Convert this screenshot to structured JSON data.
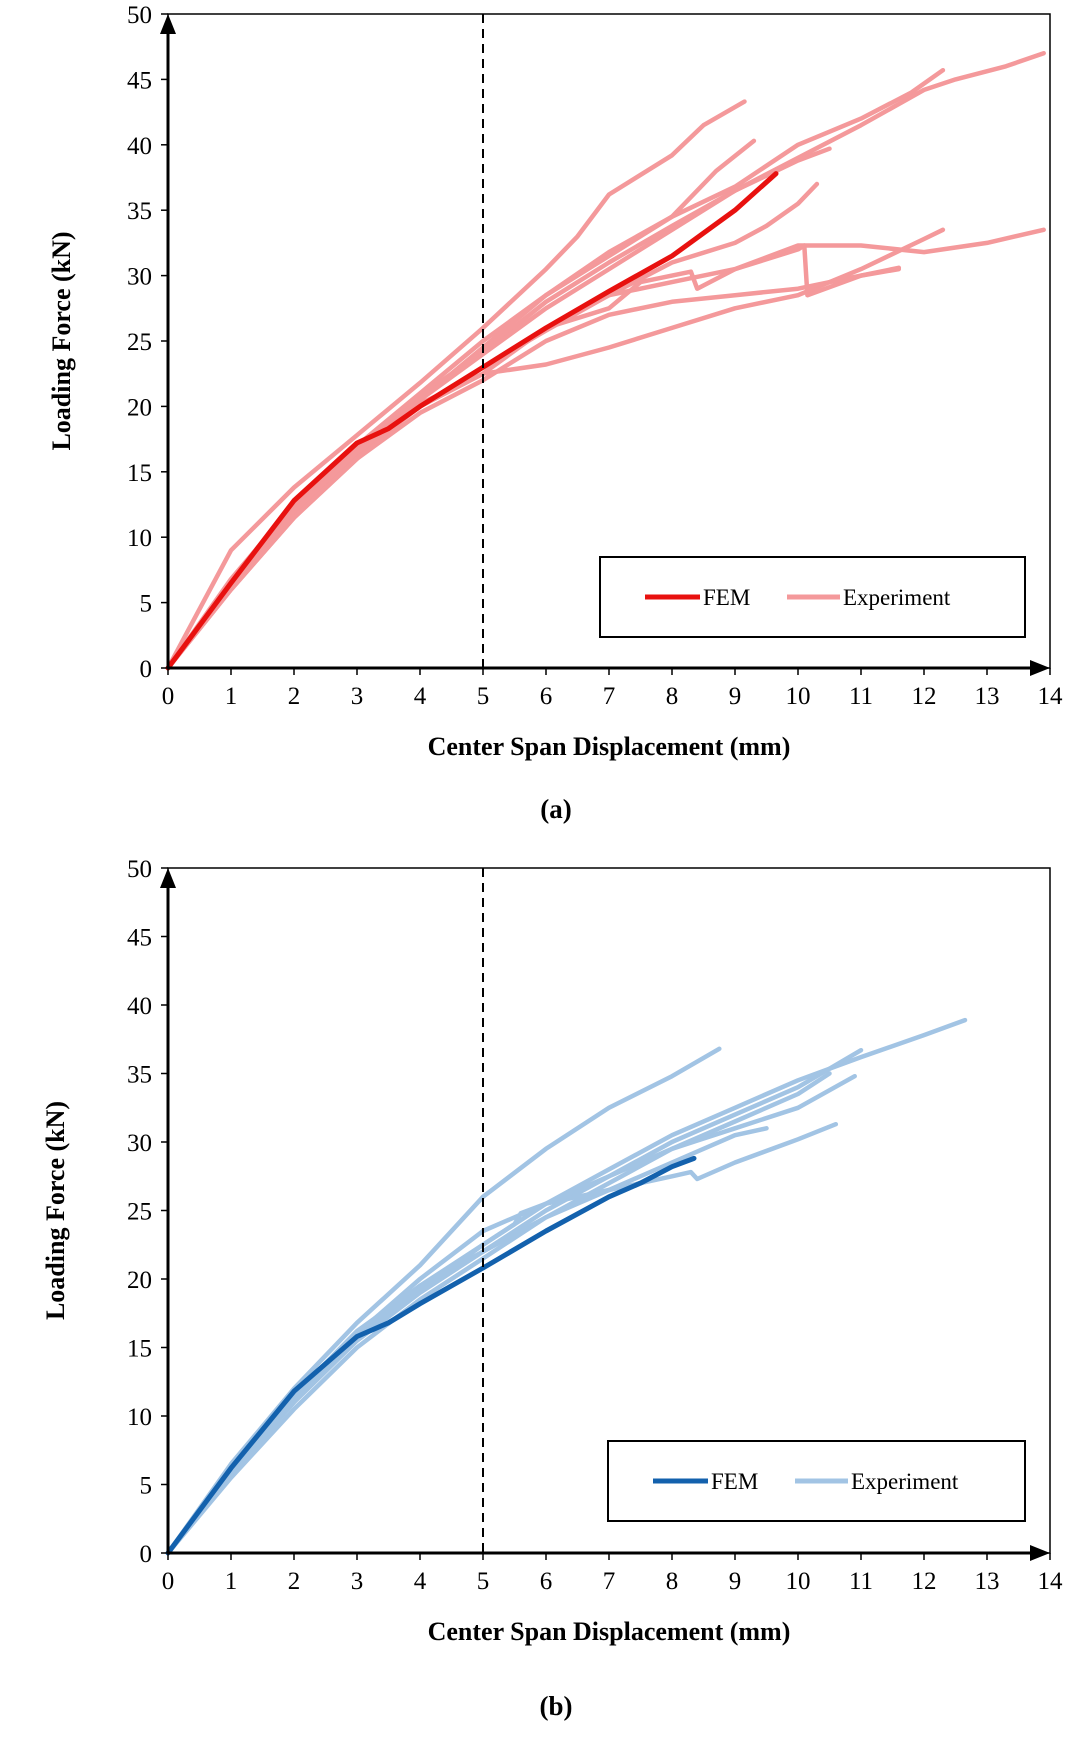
{
  "chart_data": [
    {
      "type": "line",
      "panel_label": "(a)",
      "xlabel": "Center Span Displacement (mm)",
      "ylabel": "Loading Force (kN)",
      "xlim": [
        0,
        14
      ],
      "ylim": [
        0,
        50
      ],
      "x_ticks": [
        "0",
        "1",
        "2",
        "3",
        "4",
        "5",
        "6",
        "7",
        "8",
        "9",
        "10",
        "11",
        "12",
        "13",
        "14"
      ],
      "y_ticks": [
        "0",
        "5",
        "10",
        "15",
        "20",
        "25",
        "30",
        "35",
        "40",
        "45",
        "50"
      ],
      "reference_line_x": 5,
      "legend": {
        "placement": "bottom-right",
        "fem_label": "FEM",
        "experiment_label": "Experiment"
      },
      "colors": {
        "fem": "#e8110f",
        "experiment": "#f4999b"
      },
      "series": [
        {
          "name": "FEM",
          "points": [
            [
              0,
              0
            ],
            [
              1,
              6.5
            ],
            [
              2,
              12.8
            ],
            [
              3,
              17.2
            ],
            [
              3.5,
              18.3
            ],
            [
              4,
              20.0
            ],
            [
              5,
              23.0
            ],
            [
              6,
              26.0
            ],
            [
              7,
              28.8
            ],
            [
              8,
              31.5
            ],
            [
              9,
              35.0
            ],
            [
              9.65,
              37.8
            ]
          ]
        },
        {
          "name": "Experiment",
          "points": [
            [
              0,
              0
            ],
            [
              1,
              9
            ],
            [
              2,
              13.8
            ],
            [
              3,
              17.8
            ],
            [
              4,
              21.8
            ],
            [
              5,
              26.0
            ],
            [
              6,
              30.5
            ],
            [
              6.5,
              33.0
            ],
            [
              7,
              36.2
            ],
            [
              8,
              39.2
            ],
            [
              8.5,
              41.5
            ],
            [
              9.15,
              43.3
            ]
          ]
        },
        {
          "name": "Experiment",
          "points": [
            [
              0,
              0
            ],
            [
              1,
              6.8
            ],
            [
              2,
              12.5
            ],
            [
              3,
              17.0
            ],
            [
              4,
              21.0
            ],
            [
              5,
              25.0
            ],
            [
              6,
              28.5
            ],
            [
              7,
              31.5
            ],
            [
              8,
              34.5
            ],
            [
              8.7,
              38.0
            ],
            [
              9.3,
              40.3
            ]
          ]
        },
        {
          "name": "Experiment",
          "points": [
            [
              0,
              0
            ],
            [
              1,
              6
            ],
            [
              2,
              11.5
            ],
            [
              3,
              16.0
            ],
            [
              4,
              20.5
            ],
            [
              5,
              24.5
            ],
            [
              6,
              28.5
            ],
            [
              7,
              31.8
            ],
            [
              8,
              34.5
            ],
            [
              9,
              36.8
            ],
            [
              10,
              40.0
            ],
            [
              11,
              42.0
            ],
            [
              11.8,
              44.0
            ],
            [
              12.3,
              45.7
            ]
          ]
        },
        {
          "name": "Experiment",
          "points": [
            [
              0,
              0
            ],
            [
              1,
              6.2
            ],
            [
              2,
              12
            ],
            [
              3,
              16.5
            ],
            [
              4,
              20.8
            ],
            [
              5,
              24.2
            ],
            [
              6,
              28.0
            ],
            [
              7,
              31.0
            ],
            [
              8,
              33.8
            ],
            [
              9,
              36.5
            ],
            [
              10,
              39.0
            ],
            [
              11,
              41.5
            ],
            [
              12,
              44.2
            ],
            [
              12.5,
              45.0
            ],
            [
              13.3,
              46.0
            ],
            [
              13.9,
              47.0
            ]
          ]
        },
        {
          "name": "Experiment",
          "points": [
            [
              0,
              0
            ],
            [
              1,
              6.5
            ],
            [
              2,
              12.2
            ],
            [
              3,
              16.8
            ],
            [
              4,
              20.5
            ],
            [
              5,
              24.0
            ],
            [
              6,
              27.5
            ],
            [
              7,
              30.5
            ],
            [
              8,
              33.5
            ],
            [
              9,
              36.5
            ],
            [
              10,
              38.8
            ],
            [
              10.5,
              39.7
            ]
          ]
        },
        {
          "name": "Experiment",
          "points": [
            [
              0,
              0
            ],
            [
              1,
              6
            ],
            [
              2,
              11.5
            ],
            [
              3,
              16.2
            ],
            [
              4,
              20
            ],
            [
              5,
              23.0
            ],
            [
              6,
              25.8
            ],
            [
              7,
              28.5
            ],
            [
              8,
              31
            ],
            [
              9,
              32.5
            ],
            [
              9.5,
              33.8
            ],
            [
              10,
              35.5
            ],
            [
              10.3,
              37.0
            ]
          ]
        },
        {
          "name": "Experiment",
          "points": [
            [
              0,
              0
            ],
            [
              1,
              6.2
            ],
            [
              2,
              11.8
            ],
            [
              3,
              16.5
            ],
            [
              4,
              20.0
            ],
            [
              5,
              22.5
            ],
            [
              5.5,
              24.5
            ],
            [
              6,
              26.0
            ],
            [
              7,
              27.5
            ],
            [
              7.5,
              29.5
            ],
            [
              8,
              30.0
            ],
            [
              8.3,
              30.3
            ],
            [
              8.4,
              29.0
            ],
            [
              9,
              30.5
            ],
            [
              10,
              32.0
            ],
            [
              10.1,
              32.3
            ],
            [
              10.15,
              28.5
            ],
            [
              11,
              30.0
            ],
            [
              11.6,
              30.6
            ]
          ]
        },
        {
          "name": "Experiment",
          "points": [
            [
              0,
              0
            ],
            [
              1,
              6.5
            ],
            [
              2,
              12.0
            ],
            [
              3,
              16.5
            ],
            [
              4,
              20.0
            ],
            [
              5,
              22.5
            ],
            [
              6,
              26.0
            ],
            [
              7,
              28.5
            ],
            [
              8,
              29.5
            ],
            [
              9,
              30.5
            ],
            [
              10,
              32.3
            ],
            [
              11,
              32.3
            ],
            [
              12,
              31.8
            ],
            [
              13,
              32.5
            ],
            [
              13.9,
              33.5
            ]
          ]
        },
        {
          "name": "Experiment",
          "points": [
            [
              0,
              0
            ],
            [
              1,
              6.3
            ],
            [
              2,
              12.0
            ],
            [
              3,
              16.5
            ],
            [
              4,
              20.2
            ],
            [
              5,
              22.5
            ],
            [
              6,
              23.2
            ],
            [
              7,
              24.5
            ],
            [
              8,
              26.0
            ],
            [
              9,
              27.5
            ],
            [
              10,
              28.5
            ],
            [
              11,
              30.5
            ],
            [
              12,
              32.8
            ],
            [
              12.3,
              33.5
            ]
          ]
        },
        {
          "name": "Experiment",
          "points": [
            [
              0,
              0
            ],
            [
              1,
              6
            ],
            [
              2,
              11.5
            ],
            [
              3,
              16
            ],
            [
              4,
              19.5
            ],
            [
              5,
              22.0
            ],
            [
              6,
              25.0
            ],
            [
              7,
              27.0
            ],
            [
              8,
              28.0
            ],
            [
              9,
              28.5
            ],
            [
              10,
              29.0
            ],
            [
              11,
              30.0
            ],
            [
              11.6,
              30.5
            ]
          ]
        }
      ]
    },
    {
      "type": "line",
      "panel_label": "(b)",
      "xlabel": "Center Span Displacement (mm)",
      "ylabel": "Loading Force (kN)",
      "xlim": [
        0,
        14
      ],
      "ylim": [
        0,
        50
      ],
      "x_ticks": [
        "0",
        "1",
        "2",
        "3",
        "4",
        "5",
        "6",
        "7",
        "8",
        "9",
        "10",
        "11",
        "12",
        "13",
        "14"
      ],
      "y_ticks": [
        "0",
        "5",
        "10",
        "15",
        "20",
        "25",
        "30",
        "35",
        "40",
        "45",
        "50"
      ],
      "reference_line_x": 5,
      "legend": {
        "placement": "bottom-right",
        "fem_label": "FEM",
        "experiment_label": "Experiment"
      },
      "colors": {
        "fem": "#1361ad",
        "experiment": "#a2c4e4"
      },
      "series": [
        {
          "name": "FEM",
          "points": [
            [
              0,
              0
            ],
            [
              1,
              6.2
            ],
            [
              2,
              11.8
            ],
            [
              3,
              15.8
            ],
            [
              3.5,
              16.8
            ],
            [
              4,
              18.2
            ],
            [
              5,
              20.8
            ],
            [
              6,
              23.5
            ],
            [
              7,
              26.0
            ],
            [
              7.5,
              27.0
            ],
            [
              8,
              28.2
            ],
            [
              8.35,
              28.8
            ]
          ]
        },
        {
          "name": "Experiment",
          "points": [
            [
              0,
              0
            ],
            [
              1,
              6.5
            ],
            [
              2,
              12.0
            ],
            [
              3,
              16.8
            ],
            [
              4,
              21.0
            ],
            [
              5,
              26.0
            ],
            [
              6,
              29.5
            ],
            [
              7,
              32.5
            ],
            [
              8,
              34.8
            ],
            [
              8.75,
              36.8
            ]
          ]
        },
        {
          "name": "Experiment",
          "points": [
            [
              0,
              0
            ],
            [
              1,
              6.0
            ],
            [
              2,
              11.2
            ],
            [
              3,
              16.0
            ],
            [
              4,
              19.5
            ],
            [
              5,
              22.5
            ],
            [
              6,
              25.5
            ],
            [
              7,
              28.0
            ],
            [
              8,
              30.5
            ],
            [
              9,
              32.5
            ],
            [
              10,
              34.5
            ],
            [
              11,
              36.2
            ],
            [
              12,
              37.8
            ],
            [
              12.65,
              38.9
            ]
          ]
        },
        {
          "name": "Experiment",
          "points": [
            [
              0,
              0
            ],
            [
              1,
              6.0
            ],
            [
              2,
              11.0
            ],
            [
              3,
              15.5
            ],
            [
              4,
              19.0
            ],
            [
              5,
              22.0
            ],
            [
              6,
              25.0
            ],
            [
              7,
              27.5
            ],
            [
              8,
              30.0
            ],
            [
              9,
              32.0
            ],
            [
              10,
              34.0
            ],
            [
              11,
              36.7
            ]
          ]
        },
        {
          "name": "Experiment",
          "points": [
            [
              0,
              0
            ],
            [
              1,
              5.5
            ],
            [
              2,
              10.5
            ],
            [
              3,
              15.0
            ],
            [
              4,
              18.5
            ],
            [
              5,
              21.5
            ],
            [
              6,
              24.5
            ],
            [
              7,
              27.0
            ],
            [
              8,
              29.5
            ],
            [
              9,
              31.0
            ],
            [
              10,
              32.5
            ],
            [
              10.9,
              34.8
            ]
          ]
        },
        {
          "name": "Experiment",
          "points": [
            [
              0,
              0
            ],
            [
              1,
              5.8
            ],
            [
              2,
              11.0
            ],
            [
              3,
              16.0
            ],
            [
              4,
              20.0
            ],
            [
              5,
              23.5
            ],
            [
              6,
              25.5
            ],
            [
              6.5,
              26.0
            ],
            [
              7,
              26.5
            ],
            [
              8,
              27.5
            ],
            [
              8.3,
              27.8
            ],
            [
              8.4,
              27.3
            ],
            [
              9,
              28.5
            ],
            [
              10,
              30.2
            ],
            [
              10.6,
              31.3
            ]
          ]
        },
        {
          "name": "Experiment",
          "points": [
            [
              0,
              0
            ],
            [
              1,
              6.0
            ],
            [
              2,
              11.5
            ],
            [
              3,
              16.2
            ],
            [
              4,
              19.5
            ],
            [
              5,
              22.0
            ],
            [
              6,
              24.5
            ],
            [
              7,
              26.5
            ],
            [
              8,
              28.5
            ],
            [
              9,
              30.5
            ],
            [
              9.5,
              31.0
            ]
          ]
        },
        {
          "name": "Experiment",
          "points": [
            [
              0,
              0
            ],
            [
              1,
              5.8
            ],
            [
              2,
              11.2
            ],
            [
              3,
              15.8
            ],
            [
              4,
              19.2
            ],
            [
              5,
              22.5
            ],
            [
              5.5,
              24.0
            ],
            [
              5.6,
              24.8
            ],
            [
              6,
              25.5
            ],
            [
              7,
              27.5
            ],
            [
              8,
              29.5
            ],
            [
              9,
              31.5
            ],
            [
              10,
              33.5
            ],
            [
              10.5,
              35.0
            ]
          ]
        }
      ]
    }
  ]
}
